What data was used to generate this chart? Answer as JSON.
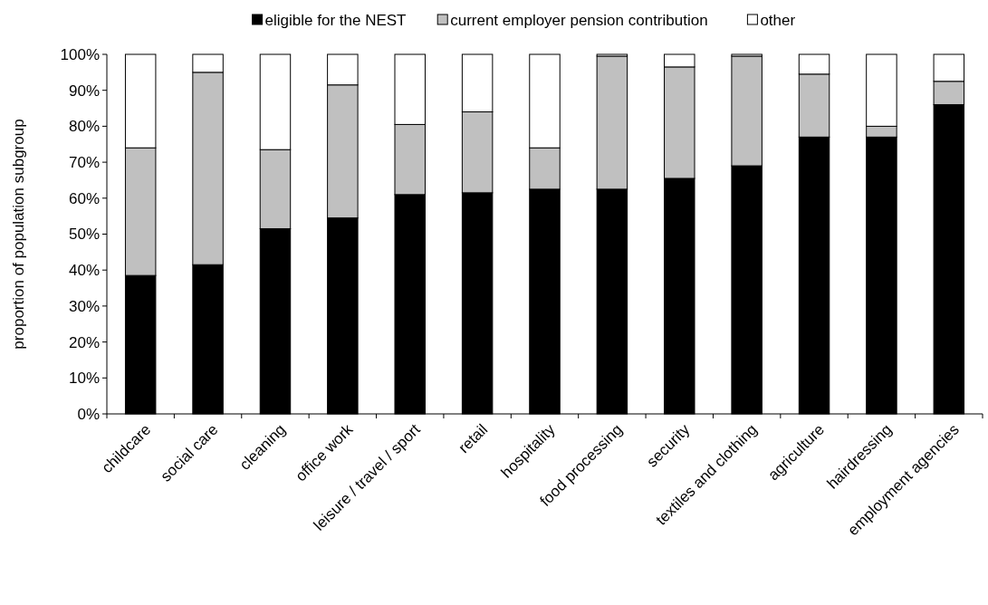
{
  "chart_data": {
    "type": "bar",
    "stacked": true,
    "ylabel": "proportion of population subgroup",
    "categories": [
      "childcare",
      "social care",
      "cleaning",
      "office work",
      "leisure / travel / sport",
      "retail",
      "hospitality",
      "food processing",
      "security",
      "textiles and clothing",
      "agriculture",
      "hairdressing",
      "employment agencies"
    ],
    "series": [
      {
        "name": "eligible for the NEST",
        "color": "#000000",
        "values": [
          38.5,
          41.5,
          51.5,
          54.5,
          61,
          61.5,
          62.5,
          62.5,
          65.5,
          69,
          77,
          77,
          86
        ]
      },
      {
        "name": "current employer pension contribution",
        "color": "#c0c0c0",
        "values": [
          35.5,
          53.5,
          22,
          37,
          19.5,
          22.5,
          11.5,
          37,
          31,
          30.5,
          17.5,
          3,
          6.5
        ]
      },
      {
        "name": "other",
        "color": "#ffffff",
        "values": [
          26,
          5,
          26.5,
          8.5,
          19.5,
          16,
          26,
          0.5,
          3.5,
          0.5,
          5.5,
          20,
          7.5
        ]
      }
    ],
    "ylim": [
      0,
      100
    ],
    "yticks": [
      {
        "value": 0,
        "label": "0%"
      },
      {
        "value": 10,
        "label": "10%"
      },
      {
        "value": 20,
        "label": "20%"
      },
      {
        "value": 30,
        "label": "30%"
      },
      {
        "value": 40,
        "label": "40%"
      },
      {
        "value": 50,
        "label": "50%"
      },
      {
        "value": 60,
        "label": "60%"
      },
      {
        "value": 70,
        "label": "70%"
      },
      {
        "value": 80,
        "label": "80%"
      },
      {
        "value": 90,
        "label": "90%"
      },
      {
        "value": 100,
        "label": "100%"
      }
    ],
    "legend": "top",
    "grid": false
  }
}
